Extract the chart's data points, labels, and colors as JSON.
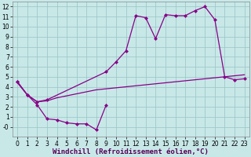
{
  "background_color": "#c8e8e8",
  "grid_color": "#a0c8c8",
  "line_color": "#880088",
  "xlim": [
    -0.5,
    23.5
  ],
  "ylim": [
    -1,
    12.5
  ],
  "xlabel": "Windchill (Refroidissement éolien,°C)",
  "xticks": [
    0,
    1,
    2,
    3,
    4,
    5,
    6,
    7,
    8,
    9,
    10,
    11,
    12,
    13,
    14,
    15,
    16,
    17,
    18,
    19,
    20,
    21,
    22,
    23
  ],
  "yticks": [
    0,
    1,
    2,
    3,
    4,
    5,
    6,
    7,
    8,
    9,
    10,
    11,
    12
  ],
  "ytick_labels": [
    "-0",
    "1",
    "2",
    "3",
    "4",
    "5",
    "6",
    "7",
    "8",
    "9",
    "10",
    "11",
    "12"
  ],
  "line1_x": [
    0,
    1,
    2,
    3,
    4,
    5,
    6,
    7,
    8,
    9
  ],
  "line1_y": [
    4.5,
    3.2,
    2.2,
    0.8,
    0.7,
    0.4,
    0.3,
    0.3,
    -0.3,
    2.2
  ],
  "line2_x": [
    0,
    1,
    2,
    3,
    4,
    5,
    6,
    7,
    8,
    9,
    10,
    11,
    12,
    13,
    14,
    15,
    16,
    17,
    18,
    19,
    20,
    21,
    22,
    23
  ],
  "line2_y": [
    4.4,
    3.2,
    2.5,
    2.6,
    2.9,
    3.1,
    3.3,
    3.5,
    3.7,
    3.8,
    3.9,
    4.0,
    4.1,
    4.2,
    4.3,
    4.4,
    4.5,
    4.6,
    4.7,
    4.8,
    4.9,
    5.0,
    5.1,
    5.2
  ],
  "line3_x": [
    0,
    1,
    2,
    3,
    9,
    10,
    11,
    12,
    13,
    14,
    15,
    16,
    17,
    18,
    19,
    20,
    21,
    22,
    23
  ],
  "line3_y": [
    4.5,
    3.2,
    2.5,
    2.7,
    5.5,
    6.5,
    7.6,
    11.1,
    10.9,
    8.8,
    11.2,
    11.1,
    11.1,
    11.6,
    12.0,
    10.7,
    5.0,
    4.7,
    4.8
  ],
  "marker": "D",
  "markersize": 2.5,
  "linewidth": 0.9,
  "tick_fontsize": 5.5,
  "xlabel_fontsize": 6.5
}
